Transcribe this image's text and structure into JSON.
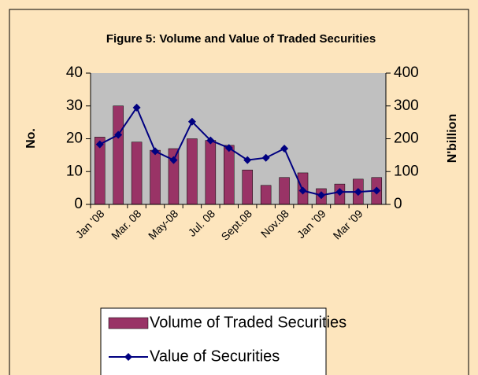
{
  "chart_data": {
    "type": "bar-line",
    "title": "Figure 5: Volume and Value of  Traded Securities",
    "y_label": "No.",
    "y2_label": "N'billion",
    "categories": [
      "Jan '08",
      null,
      "Mar. 08",
      null,
      "May-08",
      null,
      "Jul. 08",
      null,
      "Sept.08",
      null,
      "Nov.08",
      null,
      "Jan '09",
      null,
      "Mar '09",
      null
    ],
    "series": [
      {
        "name": "Volume of Traded Securities",
        "type": "bar",
        "color": "#993366",
        "axis": "y",
        "values": [
          20.5,
          30,
          19,
          16.5,
          17,
          20,
          19.5,
          18,
          10.5,
          5.8,
          8.2,
          9.6,
          4.8,
          6.2,
          7.7,
          8.2
        ]
      },
      {
        "name": "Value of Securities",
        "type": "line",
        "color": "#000080",
        "axis": "y2",
        "values": [
          183,
          212,
          295,
          162,
          135,
          252,
          195,
          172,
          135,
          142,
          170,
          42,
          28,
          38,
          38,
          42
        ]
      }
    ],
    "ylim": [
      0,
      40
    ],
    "yticks": [
      0,
      10,
      20,
      30,
      40
    ],
    "y2lim": [
      0,
      400
    ],
    "y2ticks": [
      0,
      100,
      200,
      300,
      400
    ],
    "legend": "bottom"
  }
}
